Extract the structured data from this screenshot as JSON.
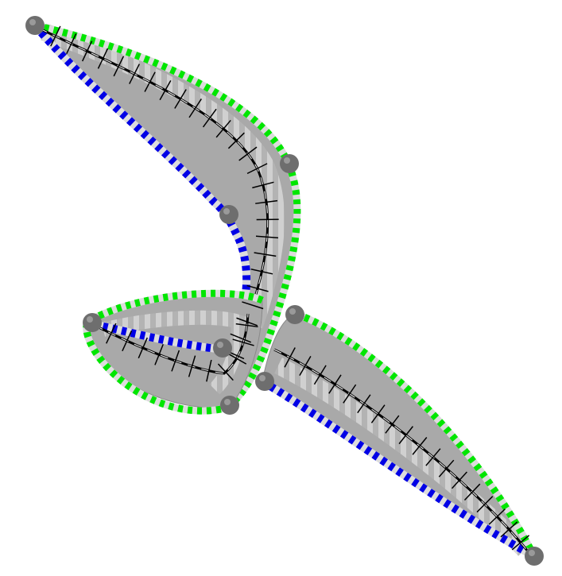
{
  "colors": {
    "background": "#ffffff",
    "body": "#a9a9a9",
    "body_light": "#d2d2d2",
    "edge_outer": "#00e600",
    "edge_inner": "#0000e6",
    "checker_light": "#dcdcdc",
    "spine": "#000000",
    "joint": "#6e6e6e"
  },
  "segments": [
    {
      "name": "upper-wing-segment"
    },
    {
      "name": "loop-segment"
    },
    {
      "name": "lower-wing-segment"
    }
  ],
  "joints": [
    {
      "name": "joint-top-left"
    },
    {
      "name": "joint-upper-right"
    },
    {
      "name": "joint-mid"
    },
    {
      "name": "joint-loop-left"
    },
    {
      "name": "joint-loop-center"
    },
    {
      "name": "joint-loop-bottom"
    },
    {
      "name": "joint-lower-start"
    },
    {
      "name": "joint-lower-upper"
    },
    {
      "name": "joint-bottom-right"
    }
  ]
}
